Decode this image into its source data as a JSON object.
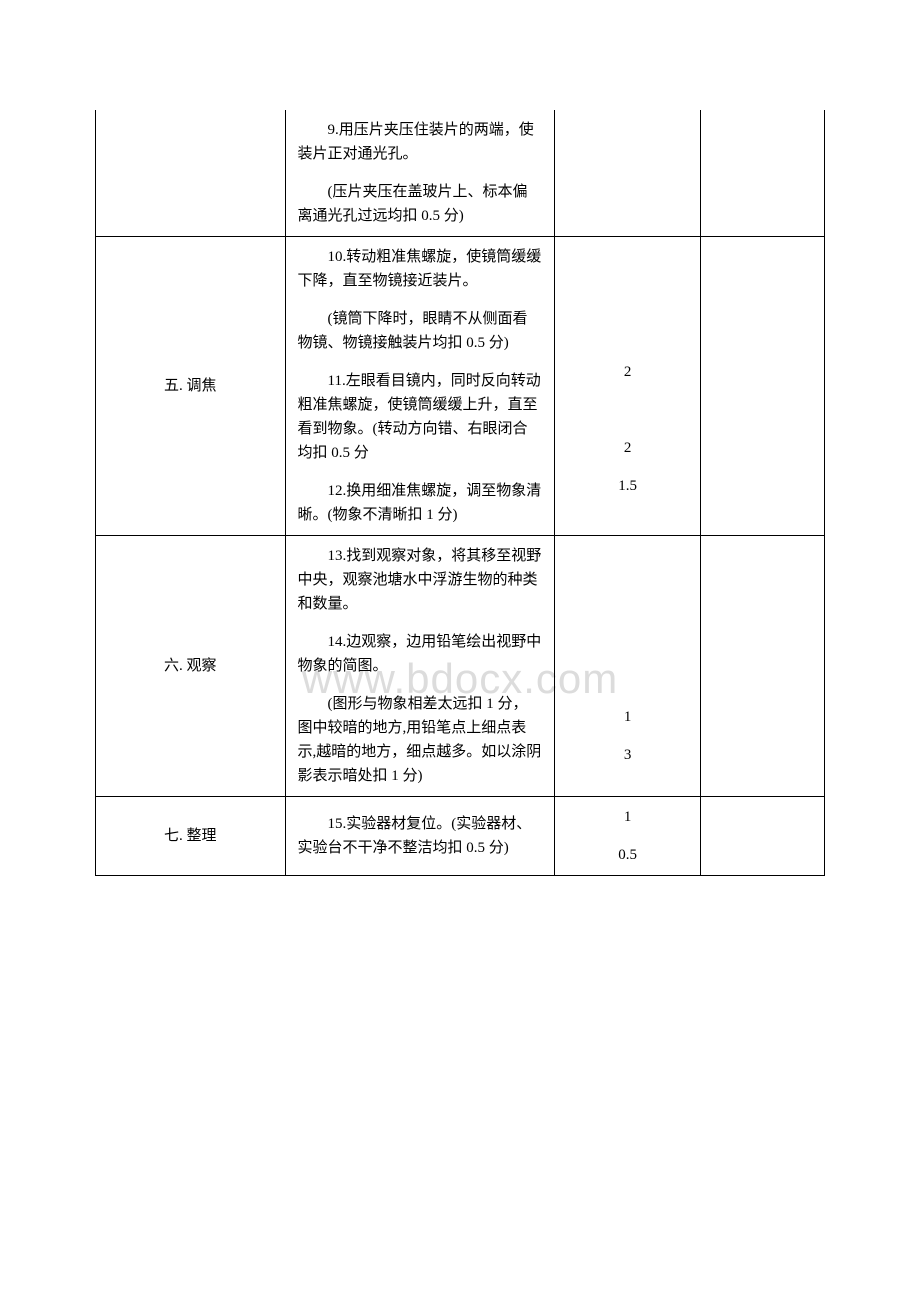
{
  "watermark": "www.bdocx.com",
  "rows": [
    {
      "col1": "",
      "col2_paras": [
        "9.用压片夹压住装片的两端，使装片正对通光孔。",
        "(压片夹压在盖玻片上、标本偏离通光孔过远均扣 0.5 分)"
      ],
      "col3_scores": [],
      "col4": "",
      "hide_top_borders": true
    },
    {
      "col1": "五. 调焦",
      "col2_paras": [
        "10.转动粗准焦螺旋，使镜筒缓缓下降，直至物镜接近装片。",
        "(镜筒下降时，眼睛不从侧面看物镜、物镜接触装片均扣 0.5 分)",
        "11.左眼看目镜内，同时反向转动粗准焦螺旋，使镜筒缓缓上升，直至看到物象。(转动方向错、右眼闭合均扣 0.5 分",
        "12.换用细准焦螺旋，调至物象清晰。(物象不清晰扣 1 分)"
      ],
      "col3_scores": [
        "2",
        "",
        "2",
        "1.5"
      ],
      "col3_padtop": "86px",
      "col4": ""
    },
    {
      "col1": "六. 观察",
      "col2_paras": [
        "13.找到观察对象，将其移至视野中央，观察池塘水中浮游生物的种类和数量。",
        "14.边观察，边用铅笔绘出视野中物象的简图。",
        "(图形与物象相差太远扣 1 分，图中较暗的地方,用铅笔点上细点表示,越暗的地方，细点越多。如以涂阴影表示暗处扣 1 分)"
      ],
      "col3_scores": [
        "1",
        "3"
      ],
      "col3_padtop": "140px",
      "col4": ""
    },
    {
      "col1": "七. 整理",
      "col2_paras": [
        "15.实验器材复位。(实验器材、实验台不干净不整洁均扣 0.5 分)"
      ],
      "col3_scores": [
        "1",
        "0.5"
      ],
      "col3_padtop": "0px",
      "col4": ""
    }
  ]
}
